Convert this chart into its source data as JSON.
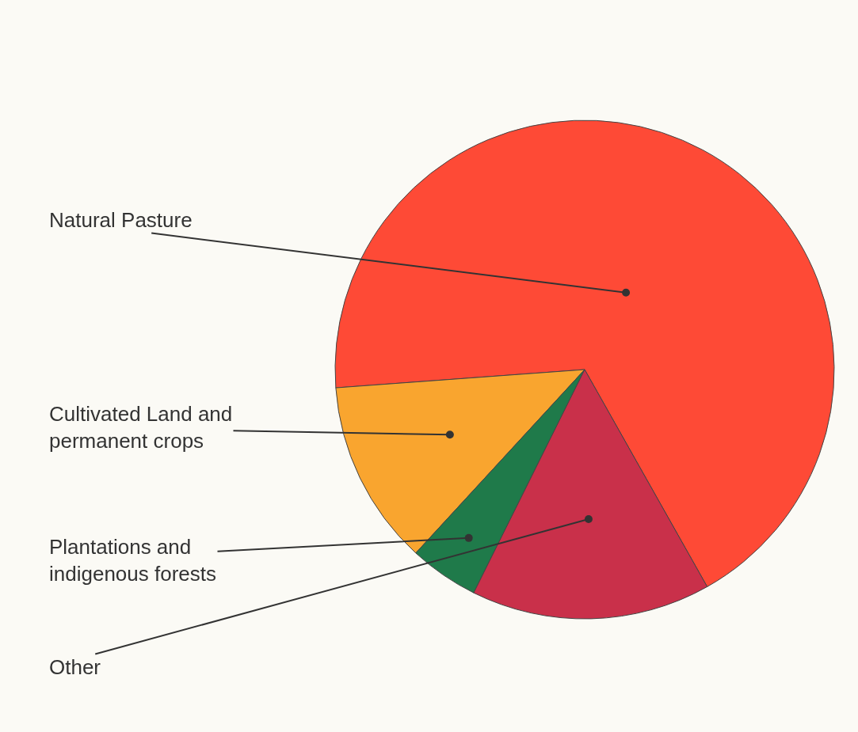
{
  "chart_data": {
    "type": "pie",
    "categories": [
      "Natural Pasture",
      "Cultivated Land and\npermanent crops",
      "Plantations and\nindigenous forests",
      "Other"
    ],
    "values": [
      68,
      12,
      4.5,
      15.5
    ],
    "colors": [
      "#fe4a36",
      "#f9a52f",
      "#1f7a4a",
      "#c9304a"
    ],
    "legend": false
  }
}
